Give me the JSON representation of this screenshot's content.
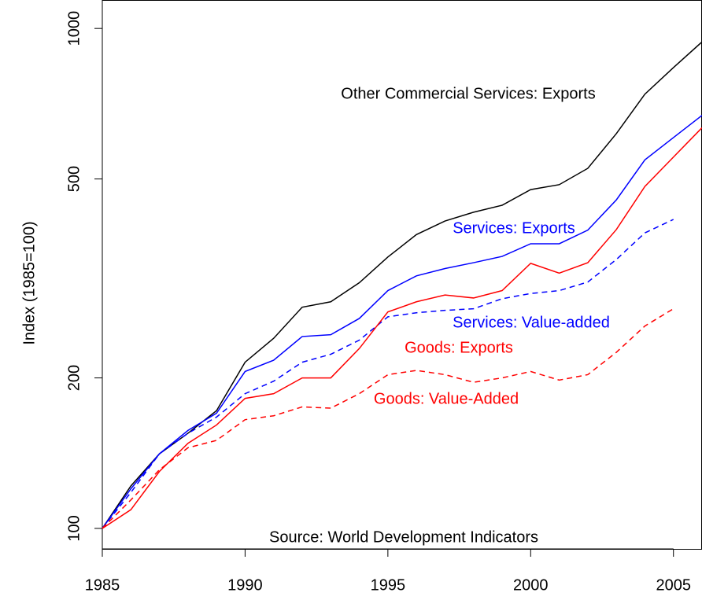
{
  "chart_data": {
    "type": "line",
    "y_label": "Index (1985=100)",
    "source": "Source: World Development Indicators",
    "log_y": true,
    "x": [
      1985,
      1986,
      1987,
      1988,
      1989,
      1990,
      1991,
      1992,
      1993,
      1994,
      1995,
      1996,
      1997,
      1998,
      1999,
      2000,
      2001,
      2002,
      2003,
      2004,
      2005,
      2006
    ],
    "xlim": [
      1985,
      2006
    ],
    "xticks": [
      1985,
      1990,
      1995,
      2000,
      2005
    ],
    "ylim": [
      91,
      1140
    ],
    "yticks": [
      100,
      200,
      500,
      1000
    ],
    "series": [
      {
        "name": "Other Commercial Services: Exports",
        "color": "#000000",
        "dashed": false,
        "values": [
          100,
          121.6,
          141,
          155,
          172,
          215,
          240,
          277,
          284,
          310,
          349,
          387,
          412,
          429,
          443,
          476,
          487,
          525,
          616,
          739,
          835,
          940
        ]
      },
      {
        "name": "Services: Exports",
        "color": "#0000ff",
        "dashed": false,
        "values": [
          100,
          120,
          141,
          157,
          170,
          206,
          217,
          242,
          244,
          263,
          299,
          320,
          331,
          340,
          350,
          371,
          371,
          395,
          454,
          546,
          605,
          670
        ]
      },
      {
        "name": "Services: Value-added",
        "color": "#0000ff",
        "dashed": true,
        "values": [
          100,
          118,
          141,
          155,
          167,
          186,
          197,
          215,
          223,
          238,
          265,
          270,
          273,
          275,
          288,
          295,
          299,
          311,
          345,
          390,
          415,
          null
        ]
      },
      {
        "name": "Goods: Exports",
        "color": "#ff0000",
        "dashed": false,
        "values": [
          100,
          109,
          130,
          148,
          161,
          182,
          186,
          200,
          200,
          229,
          271,
          284,
          293,
          289,
          299,
          339,
          324,
          340,
          396,
          483,
          553,
          633
        ]
      },
      {
        "name": "Goods: Value-Added",
        "color": "#ff0000",
        "dashed": true,
        "values": [
          100,
          114,
          131,
          145,
          150,
          165,
          168,
          175,
          174,
          186,
          203,
          207,
          203,
          196,
          200,
          206,
          198,
          203,
          225,
          254,
          275,
          null
        ]
      }
    ]
  }
}
